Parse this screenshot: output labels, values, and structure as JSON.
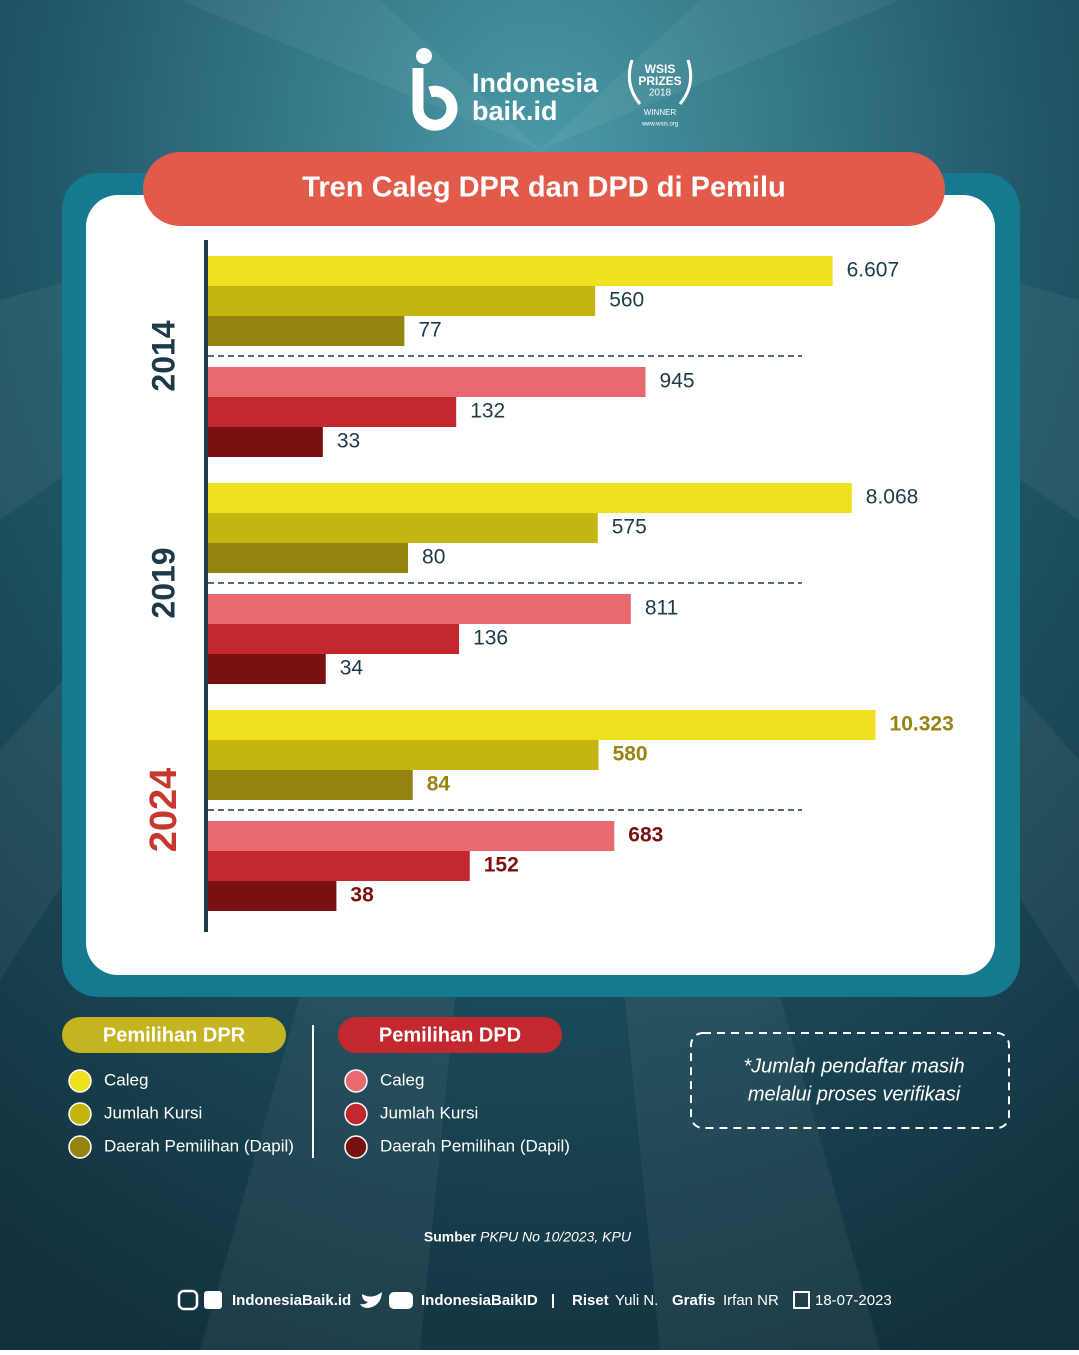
{
  "logo": {
    "name": "Indonesia",
    "domain": "baik.id",
    "award": [
      "WSIS",
      "PRIZES",
      "2018",
      "WINNER",
      "www.wsis.org"
    ]
  },
  "chart_data": {
    "type": "bar",
    "orientation": "horizontal",
    "title": "Tren Caleg DPR dan DPD di Pemilu",
    "categories": [
      "2014",
      "2019",
      "2024"
    ],
    "xscale": "log",
    "xlim": [
      10,
      12000
    ],
    "groups": [
      {
        "name": "Pemilihan DPR",
        "color": "#c4b420",
        "series": [
          {
            "name": "Caleg",
            "color": "#efe021",
            "values": [
              6607,
              8068,
              10323
            ],
            "value_labels": [
              "6.607",
              "8.068",
              "10.323"
            ]
          },
          {
            "name": "Jumlah Kursi",
            "color": "#c4b511",
            "values": [
              560,
              575,
              580
            ]
          },
          {
            "name": "Daerah Pemilihan (Dapil)",
            "color": "#958510",
            "values": [
              77,
              80,
              84
            ]
          }
        ]
      },
      {
        "name": "Pemilihan DPD",
        "color": "#c3282e",
        "series": [
          {
            "name": "Caleg",
            "color": "#e96a6e",
            "values": [
              945,
              811,
              683
            ]
          },
          {
            "name": "Jumlah Kursi",
            "color": "#c3282e",
            "values": [
              132,
              136,
              152
            ]
          },
          {
            "name": "Daerah Pemilihan (Dapil)",
            "color": "#7a1111",
            "values": [
              33,
              34,
              38
            ]
          }
        ]
      }
    ],
    "note": [
      "*Jumlah pendaftar masih",
      "melalui proses verifikasi"
    ]
  },
  "source": {
    "label": "Sumber",
    "text": "PKPU No 10/2023, KPU"
  },
  "footer": {
    "site": "IndonesiaBaik.id",
    "handle": "IndonesiaBaikID",
    "separator": "|",
    "research_label": "Riset",
    "research": "Yuli N.",
    "graphic_label": "Grafis",
    "graphic": "Irfan NR",
    "date": "18-07-2023"
  }
}
